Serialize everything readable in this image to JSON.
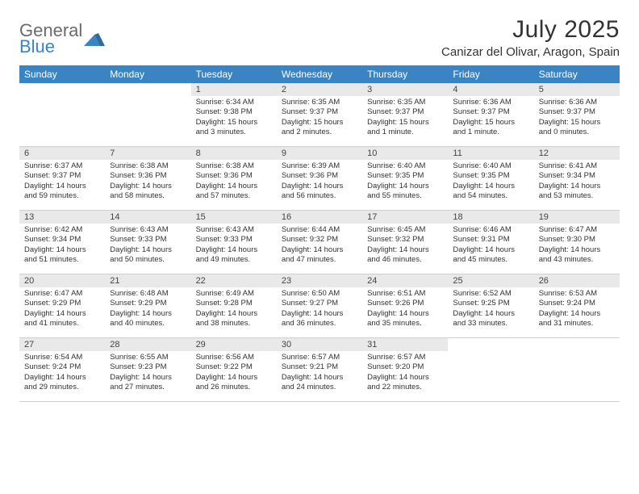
{
  "logo": {
    "text1": "General",
    "text2": "Blue"
  },
  "title": "July 2025",
  "location": "Canizar del Olivar, Aragon, Spain",
  "colors": {
    "header_bg": "#3b84c4",
    "header_text": "#ffffff",
    "daynum_bg": "#e9e9e9",
    "text": "#333333",
    "logo_gray": "#6b6b6b",
    "logo_blue": "#3b84c4"
  },
  "days_of_week": [
    "Sunday",
    "Monday",
    "Tuesday",
    "Wednesday",
    "Thursday",
    "Friday",
    "Saturday"
  ],
  "weeks": [
    [
      {
        "n": "",
        "sunrise": "",
        "sunset": "",
        "daylight": ""
      },
      {
        "n": "",
        "sunrise": "",
        "sunset": "",
        "daylight": ""
      },
      {
        "n": "1",
        "sunrise": "Sunrise: 6:34 AM",
        "sunset": "Sunset: 9:38 PM",
        "daylight": "Daylight: 15 hours and 3 minutes."
      },
      {
        "n": "2",
        "sunrise": "Sunrise: 6:35 AM",
        "sunset": "Sunset: 9:37 PM",
        "daylight": "Daylight: 15 hours and 2 minutes."
      },
      {
        "n": "3",
        "sunrise": "Sunrise: 6:35 AM",
        "sunset": "Sunset: 9:37 PM",
        "daylight": "Daylight: 15 hours and 1 minute."
      },
      {
        "n": "4",
        "sunrise": "Sunrise: 6:36 AM",
        "sunset": "Sunset: 9:37 PM",
        "daylight": "Daylight: 15 hours and 1 minute."
      },
      {
        "n": "5",
        "sunrise": "Sunrise: 6:36 AM",
        "sunset": "Sunset: 9:37 PM",
        "daylight": "Daylight: 15 hours and 0 minutes."
      }
    ],
    [
      {
        "n": "6",
        "sunrise": "Sunrise: 6:37 AM",
        "sunset": "Sunset: 9:37 PM",
        "daylight": "Daylight: 14 hours and 59 minutes."
      },
      {
        "n": "7",
        "sunrise": "Sunrise: 6:38 AM",
        "sunset": "Sunset: 9:36 PM",
        "daylight": "Daylight: 14 hours and 58 minutes."
      },
      {
        "n": "8",
        "sunrise": "Sunrise: 6:38 AM",
        "sunset": "Sunset: 9:36 PM",
        "daylight": "Daylight: 14 hours and 57 minutes."
      },
      {
        "n": "9",
        "sunrise": "Sunrise: 6:39 AM",
        "sunset": "Sunset: 9:36 PM",
        "daylight": "Daylight: 14 hours and 56 minutes."
      },
      {
        "n": "10",
        "sunrise": "Sunrise: 6:40 AM",
        "sunset": "Sunset: 9:35 PM",
        "daylight": "Daylight: 14 hours and 55 minutes."
      },
      {
        "n": "11",
        "sunrise": "Sunrise: 6:40 AM",
        "sunset": "Sunset: 9:35 PM",
        "daylight": "Daylight: 14 hours and 54 minutes."
      },
      {
        "n": "12",
        "sunrise": "Sunrise: 6:41 AM",
        "sunset": "Sunset: 9:34 PM",
        "daylight": "Daylight: 14 hours and 53 minutes."
      }
    ],
    [
      {
        "n": "13",
        "sunrise": "Sunrise: 6:42 AM",
        "sunset": "Sunset: 9:34 PM",
        "daylight": "Daylight: 14 hours and 51 minutes."
      },
      {
        "n": "14",
        "sunrise": "Sunrise: 6:43 AM",
        "sunset": "Sunset: 9:33 PM",
        "daylight": "Daylight: 14 hours and 50 minutes."
      },
      {
        "n": "15",
        "sunrise": "Sunrise: 6:43 AM",
        "sunset": "Sunset: 9:33 PM",
        "daylight": "Daylight: 14 hours and 49 minutes."
      },
      {
        "n": "16",
        "sunrise": "Sunrise: 6:44 AM",
        "sunset": "Sunset: 9:32 PM",
        "daylight": "Daylight: 14 hours and 47 minutes."
      },
      {
        "n": "17",
        "sunrise": "Sunrise: 6:45 AM",
        "sunset": "Sunset: 9:32 PM",
        "daylight": "Daylight: 14 hours and 46 minutes."
      },
      {
        "n": "18",
        "sunrise": "Sunrise: 6:46 AM",
        "sunset": "Sunset: 9:31 PM",
        "daylight": "Daylight: 14 hours and 45 minutes."
      },
      {
        "n": "19",
        "sunrise": "Sunrise: 6:47 AM",
        "sunset": "Sunset: 9:30 PM",
        "daylight": "Daylight: 14 hours and 43 minutes."
      }
    ],
    [
      {
        "n": "20",
        "sunrise": "Sunrise: 6:47 AM",
        "sunset": "Sunset: 9:29 PM",
        "daylight": "Daylight: 14 hours and 41 minutes."
      },
      {
        "n": "21",
        "sunrise": "Sunrise: 6:48 AM",
        "sunset": "Sunset: 9:29 PM",
        "daylight": "Daylight: 14 hours and 40 minutes."
      },
      {
        "n": "22",
        "sunrise": "Sunrise: 6:49 AM",
        "sunset": "Sunset: 9:28 PM",
        "daylight": "Daylight: 14 hours and 38 minutes."
      },
      {
        "n": "23",
        "sunrise": "Sunrise: 6:50 AM",
        "sunset": "Sunset: 9:27 PM",
        "daylight": "Daylight: 14 hours and 36 minutes."
      },
      {
        "n": "24",
        "sunrise": "Sunrise: 6:51 AM",
        "sunset": "Sunset: 9:26 PM",
        "daylight": "Daylight: 14 hours and 35 minutes."
      },
      {
        "n": "25",
        "sunrise": "Sunrise: 6:52 AM",
        "sunset": "Sunset: 9:25 PM",
        "daylight": "Daylight: 14 hours and 33 minutes."
      },
      {
        "n": "26",
        "sunrise": "Sunrise: 6:53 AM",
        "sunset": "Sunset: 9:24 PM",
        "daylight": "Daylight: 14 hours and 31 minutes."
      }
    ],
    [
      {
        "n": "27",
        "sunrise": "Sunrise: 6:54 AM",
        "sunset": "Sunset: 9:24 PM",
        "daylight": "Daylight: 14 hours and 29 minutes."
      },
      {
        "n": "28",
        "sunrise": "Sunrise: 6:55 AM",
        "sunset": "Sunset: 9:23 PM",
        "daylight": "Daylight: 14 hours and 27 minutes."
      },
      {
        "n": "29",
        "sunrise": "Sunrise: 6:56 AM",
        "sunset": "Sunset: 9:22 PM",
        "daylight": "Daylight: 14 hours and 26 minutes."
      },
      {
        "n": "30",
        "sunrise": "Sunrise: 6:57 AM",
        "sunset": "Sunset: 9:21 PM",
        "daylight": "Daylight: 14 hours and 24 minutes."
      },
      {
        "n": "31",
        "sunrise": "Sunrise: 6:57 AM",
        "sunset": "Sunset: 9:20 PM",
        "daylight": "Daylight: 14 hours and 22 minutes."
      },
      {
        "n": "",
        "sunrise": "",
        "sunset": "",
        "daylight": ""
      },
      {
        "n": "",
        "sunrise": "",
        "sunset": "",
        "daylight": ""
      }
    ]
  ]
}
